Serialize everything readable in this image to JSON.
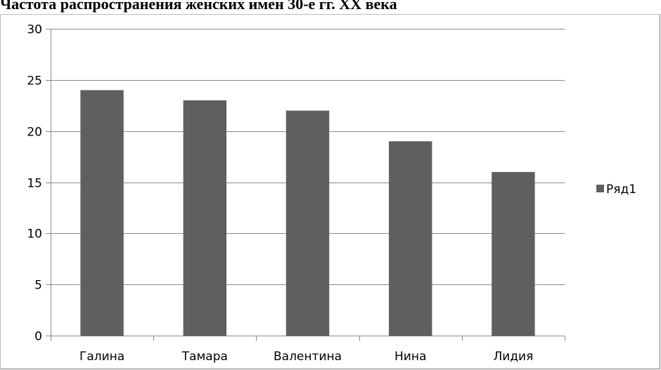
{
  "chart_data": {
    "type": "bar",
    "title": "Частота распространения женских имен 30-е гг. XX века",
    "categories": [
      "Галина",
      "Тамара",
      "Валентина",
      "Нина",
      "Лидия"
    ],
    "series": [
      {
        "name": "Ряд1",
        "values": [
          24,
          23,
          22,
          19,
          16
        ],
        "color": "#5f5f5f"
      }
    ],
    "xlabel": "",
    "ylabel": "",
    "ylim": [
      0,
      30
    ],
    "yticks": [
      "0",
      "5",
      "10",
      "15",
      "20",
      "25",
      "30"
    ],
    "grid": true,
    "legend": "right"
  }
}
